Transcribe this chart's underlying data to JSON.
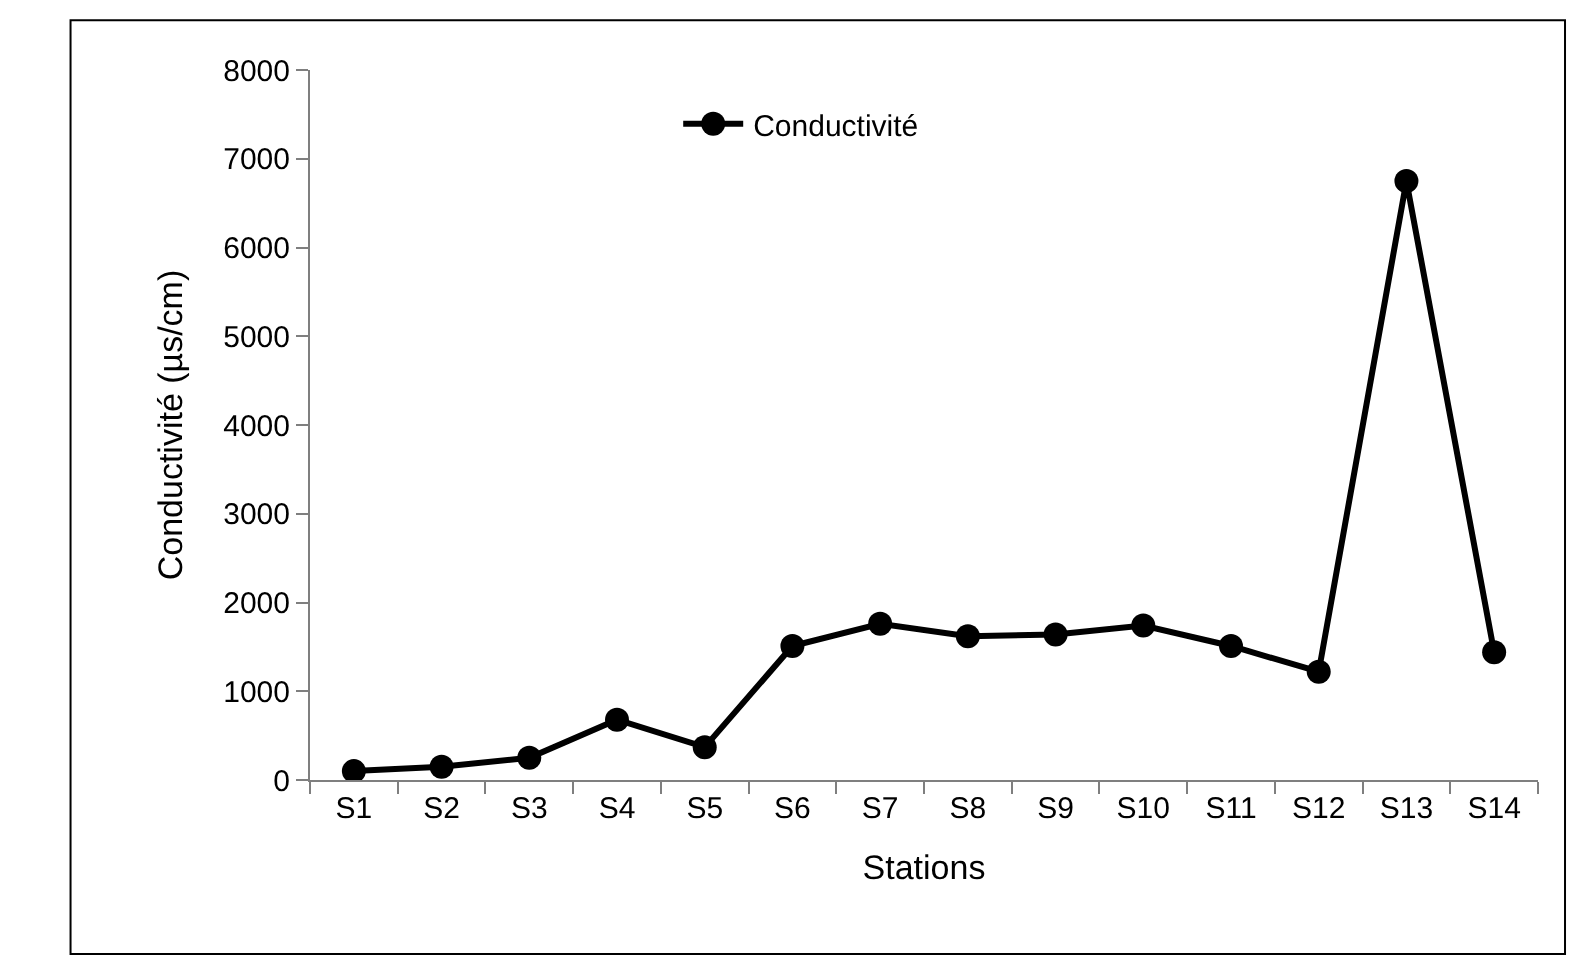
{
  "chart_data": {
    "type": "line",
    "xlabel": "Stations",
    "ylabel": "Conductivité (µs/cm)",
    "categories": [
      "S1",
      "S2",
      "S3",
      "S4",
      "S5",
      "S6",
      "S7",
      "S8",
      "S9",
      "S10",
      "S11",
      "S12",
      "S13",
      "S14"
    ],
    "series": [
      {
        "name": "Conductivité",
        "color": "#000000",
        "values": [
          100,
          150,
          250,
          680,
          370,
          1510,
          1760,
          1620,
          1640,
          1740,
          1510,
          1220,
          6750,
          1440
        ]
      }
    ],
    "ylim": [
      0,
      8000
    ],
    "yticks": [
      0,
      1000,
      2000,
      3000,
      4000,
      5000,
      6000,
      7000,
      8000
    ],
    "grid": false,
    "legend": "top",
    "marker": "circle",
    "line_style": "solid"
  }
}
